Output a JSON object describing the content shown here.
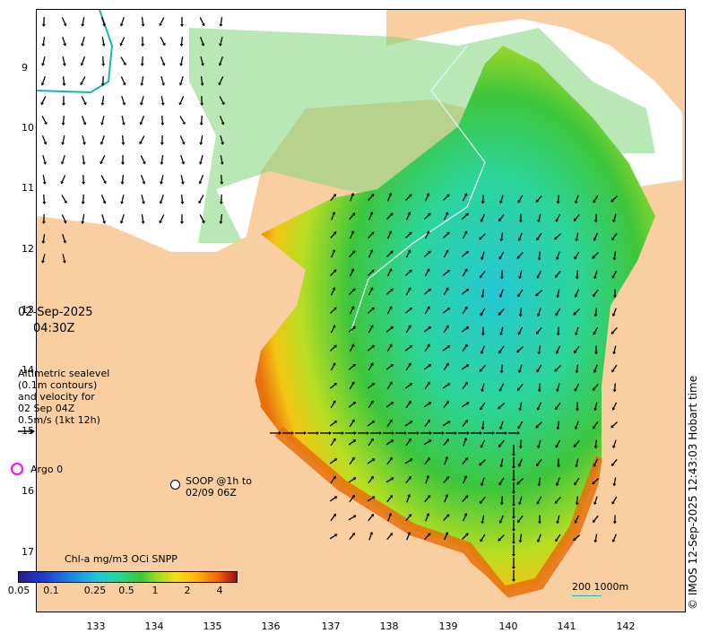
{
  "map": {
    "datetime": {
      "date": "02-Sep-2025",
      "time": "04:30Z"
    },
    "altimetry_note": {
      "lines": [
        "Altimetric sealevel",
        "(0.1m contours)",
        "and velocity for",
        "02 Sep 04Z",
        "0.5m/s (1kt 12h)"
      ]
    },
    "argo_legend": {
      "label": "Argo 0",
      "marker_color": "#ff00ff"
    },
    "soop_legend": {
      "line1": "SOOP @1h to",
      "line2": "02/09 06Z"
    },
    "colorbar": {
      "title": "Chl-a mg/m3 OCi SNPP",
      "ticks": [
        "0.05",
        "0.1",
        "0.25",
        "0.5",
        "1",
        "2",
        "4"
      ]
    },
    "scale_label": "200  1000m",
    "credit": "© IMOS 12-Sep-2025 12:43:03 Hobart time",
    "lat_labels": [
      "9",
      "10",
      "11",
      "12",
      "13",
      "14",
      "15",
      "16",
      "17"
    ],
    "lon_labels": [
      "133",
      "134",
      "135",
      "136",
      "137",
      "138",
      "139",
      "140",
      "141",
      "142"
    ],
    "colors": {
      "land": "#f9cfa2",
      "sea_white": "#ffffff",
      "contour": "#16b7b0"
    }
  }
}
